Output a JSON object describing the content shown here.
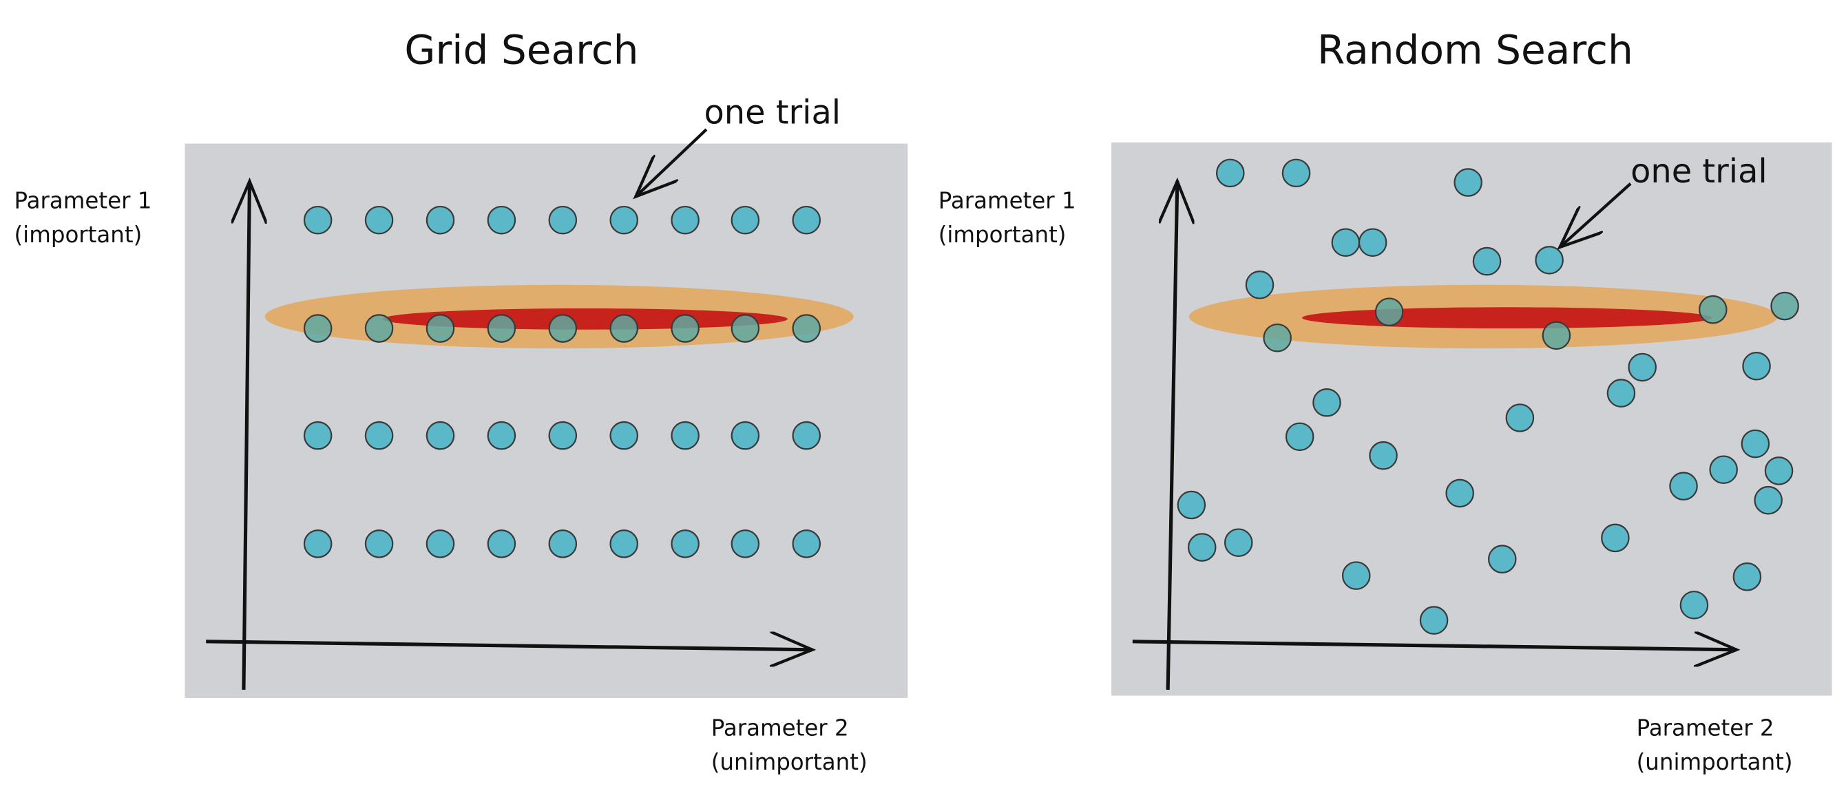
{
  "panels": [
    {
      "title": "Grid Search",
      "y_label": [
        "Parameter 1",
        "(important)"
      ],
      "x_label": [
        "Parameter 2",
        "(unimportant)"
      ],
      "annotation": "one trial"
    },
    {
      "title": "Random Search",
      "y_label": [
        "Parameter 1",
        "(important)"
      ],
      "x_label": [
        "Parameter 2",
        "(unimportant)"
      ],
      "annotation": "one trial"
    }
  ]
}
